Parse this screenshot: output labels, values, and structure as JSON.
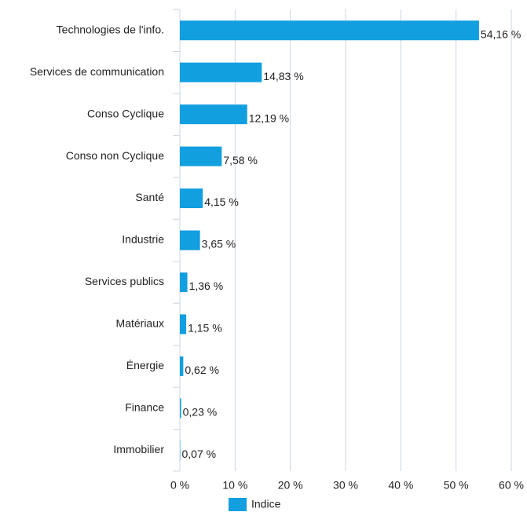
{
  "chart_data": {
    "type": "bar",
    "orientation": "horizontal",
    "categories": [
      "Technologies de l'info.",
      "Services de communication",
      "Conso Cyclique",
      "Conso non Cyclique",
      "Santé",
      "Industrie",
      "Services publics",
      "Matériaux",
      "Énergie",
      "Finance",
      "Immobilier"
    ],
    "series": [
      {
        "name": "Indice",
        "color": "#129fe0",
        "values": [
          54.16,
          14.83,
          12.19,
          7.58,
          4.15,
          3.65,
          1.36,
          1.15,
          0.62,
          0.23,
          0.07
        ],
        "value_labels": [
          "54,16 %",
          "14,83 %",
          "12,19 %",
          "7,58 %",
          "4,15 %",
          "3,65 %",
          "1,36 %",
          "1,15 %",
          "0,62 %",
          "0,23 %",
          "0,07 %"
        ]
      }
    ],
    "xlim": [
      0,
      60
    ],
    "xticks": [
      {
        "value": 0,
        "label": "0 %"
      },
      {
        "value": 10,
        "label": "10 %"
      },
      {
        "value": 20,
        "label": "20 %"
      },
      {
        "value": 30,
        "label": "30 %"
      },
      {
        "value": 40,
        "label": "40 %"
      },
      {
        "value": 50,
        "label": "50 %"
      },
      {
        "value": 60,
        "label": "60 %"
      }
    ],
    "grid": true,
    "legend": "bottom"
  }
}
